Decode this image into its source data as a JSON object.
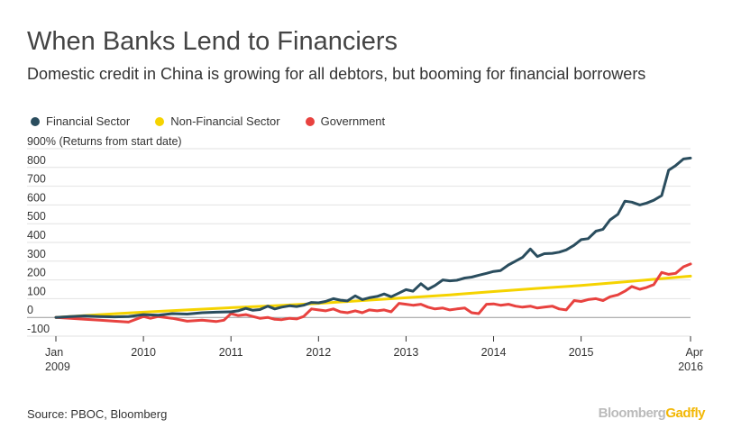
{
  "header": {
    "title": "When Banks Lend to Financiers",
    "subtitle": "Domestic credit in China is growing for all debtors, but booming for financial borrowers"
  },
  "legend": [
    {
      "label": "Financial Sector",
      "color": "#2a4d5e"
    },
    {
      "label": "Non-Financial Sector",
      "color": "#f5d300"
    },
    {
      "label": "Government",
      "color": "#e8423f"
    }
  ],
  "footer": {
    "source": "Source: PBOC, Bloomberg",
    "brand_part1": "Bloomberg",
    "brand_part2": "Gadfly"
  },
  "chart_data": {
    "type": "line",
    "title": "When Banks Lend to Financiers",
    "ylabel": "% (Returns from start date)",
    "ytick_top_label": "900% (Returns from start date)",
    "ylim": [
      -100,
      900
    ],
    "yticks": [
      -100,
      0,
      100,
      200,
      300,
      400,
      500,
      600,
      700,
      800,
      900
    ],
    "xlim": [
      2009.0,
      2016.25
    ],
    "xticks": [
      {
        "v": 2009.0,
        "l1": "Jan",
        "l2": "2009"
      },
      {
        "v": 2010.0,
        "l1": "2010",
        "l2": ""
      },
      {
        "v": 2011.0,
        "l1": "2011",
        "l2": ""
      },
      {
        "v": 2012.0,
        "l1": "2012",
        "l2": ""
      },
      {
        "v": 2013.0,
        "l1": "2013",
        "l2": ""
      },
      {
        "v": 2014.0,
        "l1": "2014",
        "l2": ""
      },
      {
        "v": 2015.0,
        "l1": "2015",
        "l2": ""
      },
      {
        "v": 2016.25,
        "l1": "Apr",
        "l2": "2016"
      }
    ],
    "series": [
      {
        "name": "Financial Sector",
        "color": "#2a4d5e",
        "points": [
          [
            2009.0,
            0
          ],
          [
            2009.17,
            5
          ],
          [
            2009.33,
            8
          ],
          [
            2009.5,
            5
          ],
          [
            2009.67,
            3
          ],
          [
            2009.83,
            5
          ],
          [
            2010.0,
            15
          ],
          [
            2010.17,
            12
          ],
          [
            2010.33,
            20
          ],
          [
            2010.5,
            18
          ],
          [
            2010.67,
            25
          ],
          [
            2010.83,
            28
          ],
          [
            2011.0,
            30
          ],
          [
            2011.08,
            35
          ],
          [
            2011.17,
            48
          ],
          [
            2011.25,
            38
          ],
          [
            2011.33,
            42
          ],
          [
            2011.42,
            60
          ],
          [
            2011.5,
            45
          ],
          [
            2011.58,
            55
          ],
          [
            2011.67,
            62
          ],
          [
            2011.75,
            58
          ],
          [
            2011.83,
            65
          ],
          [
            2011.92,
            80
          ],
          [
            2012.0,
            78
          ],
          [
            2012.08,
            85
          ],
          [
            2012.17,
            100
          ],
          [
            2012.25,
            92
          ],
          [
            2012.33,
            88
          ],
          [
            2012.42,
            115
          ],
          [
            2012.5,
            95
          ],
          [
            2012.58,
            105
          ],
          [
            2012.67,
            112
          ],
          [
            2012.75,
            125
          ],
          [
            2012.83,
            110
          ],
          [
            2012.92,
            130
          ],
          [
            2013.0,
            148
          ],
          [
            2013.08,
            140
          ],
          [
            2013.17,
            180
          ],
          [
            2013.25,
            150
          ],
          [
            2013.33,
            170
          ],
          [
            2013.42,
            200
          ],
          [
            2013.5,
            195
          ],
          [
            2013.58,
            198
          ],
          [
            2013.67,
            210
          ],
          [
            2013.75,
            215
          ],
          [
            2013.83,
            225
          ],
          [
            2013.92,
            235
          ],
          [
            2014.0,
            245
          ],
          [
            2014.08,
            250
          ],
          [
            2014.17,
            280
          ],
          [
            2014.25,
            300
          ],
          [
            2014.33,
            320
          ],
          [
            2014.42,
            365
          ],
          [
            2014.5,
            325
          ],
          [
            2014.58,
            340
          ],
          [
            2014.67,
            342
          ],
          [
            2014.75,
            348
          ],
          [
            2014.83,
            360
          ],
          [
            2014.92,
            385
          ],
          [
            2015.0,
            415
          ],
          [
            2015.08,
            420
          ],
          [
            2015.17,
            460
          ],
          [
            2015.25,
            470
          ],
          [
            2015.33,
            520
          ],
          [
            2015.42,
            550
          ],
          [
            2015.5,
            620
          ],
          [
            2015.58,
            615
          ],
          [
            2015.67,
            600
          ],
          [
            2015.75,
            610
          ],
          [
            2015.83,
            625
          ],
          [
            2015.92,
            650
          ],
          [
            2016.0,
            785
          ],
          [
            2016.08,
            810
          ],
          [
            2016.17,
            845
          ],
          [
            2016.25,
            850
          ]
        ]
      },
      {
        "name": "Non-Financial Sector",
        "color": "#f5d300",
        "points": [
          [
            2009.0,
            0
          ],
          [
            2009.5,
            15
          ],
          [
            2010.0,
            28
          ],
          [
            2010.5,
            40
          ],
          [
            2011.0,
            52
          ],
          [
            2011.5,
            62
          ],
          [
            2012.0,
            75
          ],
          [
            2012.5,
            90
          ],
          [
            2013.0,
            105
          ],
          [
            2013.5,
            120
          ],
          [
            2014.0,
            138
          ],
          [
            2014.5,
            155
          ],
          [
            2015.0,
            170
          ],
          [
            2015.5,
            190
          ],
          [
            2016.0,
            210
          ],
          [
            2016.25,
            220
          ]
        ]
      },
      {
        "name": "Government",
        "color": "#e8423f",
        "points": [
          [
            2009.0,
            0
          ],
          [
            2009.17,
            -5
          ],
          [
            2009.33,
            -10
          ],
          [
            2009.5,
            -15
          ],
          [
            2009.67,
            -20
          ],
          [
            2009.83,
            -25
          ],
          [
            2010.0,
            5
          ],
          [
            2010.08,
            -5
          ],
          [
            2010.17,
            5
          ],
          [
            2010.33,
            -5
          ],
          [
            2010.5,
            -20
          ],
          [
            2010.67,
            -15
          ],
          [
            2010.83,
            -22
          ],
          [
            2010.92,
            -15
          ],
          [
            2011.0,
            20
          ],
          [
            2011.08,
            10
          ],
          [
            2011.17,
            15
          ],
          [
            2011.25,
            5
          ],
          [
            2011.33,
            -5
          ],
          [
            2011.42,
            0
          ],
          [
            2011.5,
            -10
          ],
          [
            2011.58,
            -12
          ],
          [
            2011.67,
            -5
          ],
          [
            2011.75,
            -8
          ],
          [
            2011.83,
            5
          ],
          [
            2011.92,
            45
          ],
          [
            2012.0,
            40
          ],
          [
            2012.08,
            35
          ],
          [
            2012.17,
            45
          ],
          [
            2012.25,
            30
          ],
          [
            2012.33,
            25
          ],
          [
            2012.42,
            35
          ],
          [
            2012.5,
            25
          ],
          [
            2012.58,
            40
          ],
          [
            2012.67,
            35
          ],
          [
            2012.75,
            40
          ],
          [
            2012.83,
            30
          ],
          [
            2012.92,
            75
          ],
          [
            2013.0,
            70
          ],
          [
            2013.08,
            65
          ],
          [
            2013.17,
            70
          ],
          [
            2013.25,
            55
          ],
          [
            2013.33,
            45
          ],
          [
            2013.42,
            50
          ],
          [
            2013.5,
            40
          ],
          [
            2013.58,
            45
          ],
          [
            2013.67,
            50
          ],
          [
            2013.75,
            25
          ],
          [
            2013.83,
            20
          ],
          [
            2013.92,
            70
          ],
          [
            2014.0,
            72
          ],
          [
            2014.08,
            65
          ],
          [
            2014.17,
            70
          ],
          [
            2014.25,
            60
          ],
          [
            2014.33,
            55
          ],
          [
            2014.42,
            60
          ],
          [
            2014.5,
            50
          ],
          [
            2014.58,
            55
          ],
          [
            2014.67,
            60
          ],
          [
            2014.75,
            45
          ],
          [
            2014.83,
            40
          ],
          [
            2014.92,
            90
          ],
          [
            2015.0,
            85
          ],
          [
            2015.08,
            95
          ],
          [
            2015.17,
            100
          ],
          [
            2015.25,
            90
          ],
          [
            2015.33,
            110
          ],
          [
            2015.42,
            120
          ],
          [
            2015.5,
            140
          ],
          [
            2015.58,
            165
          ],
          [
            2015.67,
            150
          ],
          [
            2015.75,
            160
          ],
          [
            2015.83,
            175
          ],
          [
            2015.92,
            240
          ],
          [
            2016.0,
            230
          ],
          [
            2016.08,
            235
          ],
          [
            2016.17,
            270
          ],
          [
            2016.25,
            285
          ]
        ]
      }
    ]
  }
}
